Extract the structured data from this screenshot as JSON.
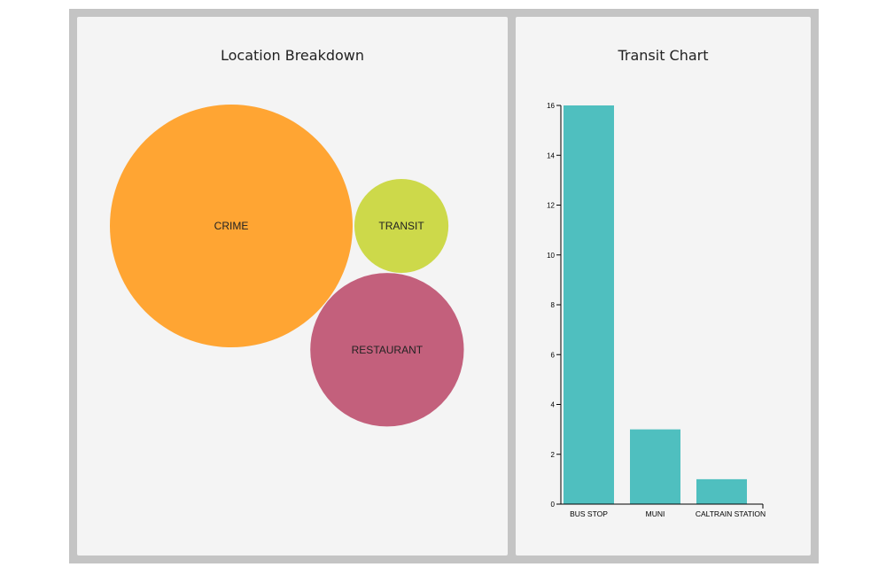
{
  "panels": {
    "left_title": "Location Breakdown",
    "right_title": "Transit Chart"
  },
  "colors": {
    "crime": "#FFA533",
    "transit": "#CDD94A",
    "restaurant": "#C3607C",
    "bar": "#4FBFBF",
    "panel_bg": "#F4F4F4",
    "frame": "#C4C4C4"
  },
  "chart_data": [
    {
      "type": "bubble",
      "title": "Location Breakdown",
      "categories": [
        "CRIME",
        "TRANSIT",
        "RESTAURANT"
      ],
      "values": [
        20,
        3,
        8
      ]
    },
    {
      "type": "bar",
      "title": "Transit Chart",
      "categories": [
        "BUS STOP",
        "MUNI",
        "CALTRAIN STATION"
      ],
      "values": [
        16,
        3,
        1
      ],
      "ylim": [
        0,
        16
      ],
      "yticks": [
        0,
        2,
        4,
        6,
        8,
        10,
        12,
        14,
        16
      ],
      "xlabel": "",
      "ylabel": "",
      "grid": false
    }
  ]
}
